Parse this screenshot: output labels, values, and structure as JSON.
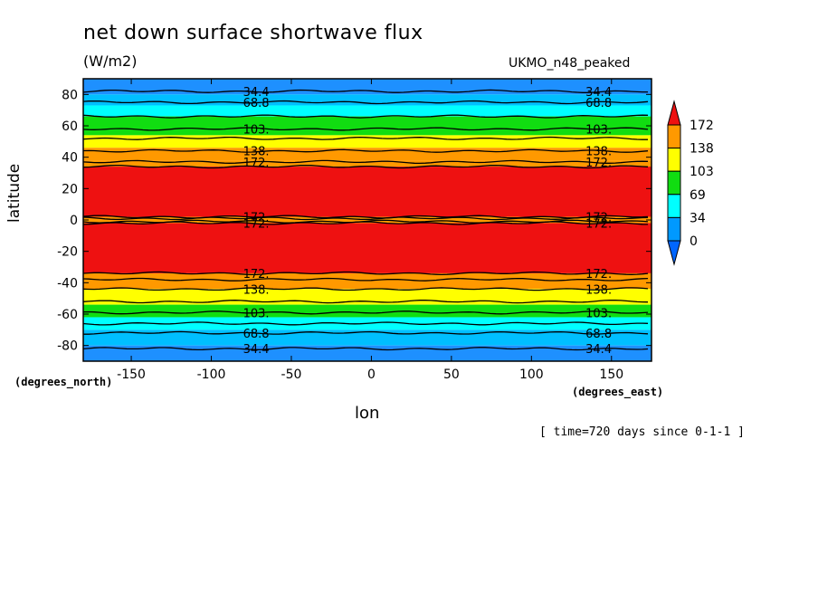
{
  "chart_data": {
    "type": "heatmap",
    "title": "net down surface shortwave flux",
    "units": "(W/m2)",
    "dataset": "UKMO_n48_peaked",
    "xlabel": "lon",
    "ylabel": "latitude",
    "x_units": "(degrees_east)",
    "y_units": "(degrees_north)",
    "annotation": "[ time=720 days since 0-1-1 ]",
    "xlim": [
      -180,
      175
    ],
    "ylim": [
      -90,
      90
    ],
    "x_ticks": [
      -150,
      -100,
      -50,
      0,
      50,
      100,
      150
    ],
    "x_tick_labels": [
      "-150",
      "-100",
      "-50",
      "0",
      "50",
      "100",
      "150"
    ],
    "y_ticks": [
      80,
      60,
      40,
      20,
      0,
      -20,
      -40,
      -60,
      -80
    ],
    "y_tick_labels": [
      "80",
      "60",
      "40",
      "20",
      "0",
      "-20",
      "-40",
      "-60",
      "-80"
    ],
    "colorbar": {
      "labels": [
        "172",
        "138",
        "103",
        "69",
        "34",
        "0"
      ],
      "colors": [
        "#ff9900",
        "#ffff00",
        "#11dd11",
        "#00ffff",
        "#0099ff"
      ],
      "over_color": "#ee1111",
      "under_color": "#0066ff"
    },
    "bands": [
      {
        "lat_from": 90,
        "lat_to": 80,
        "color": "#1e90ff"
      },
      {
        "lat_from": 80,
        "lat_to": 73,
        "color": "#00bfff"
      },
      {
        "lat_from": 73,
        "lat_to": 66,
        "color": "#00ffff"
      },
      {
        "lat_from": 66,
        "lat_to": 60,
        "color": "#11dd11"
      },
      {
        "lat_from": 60,
        "lat_to": 54,
        "color": "#11dd11"
      },
      {
        "lat_from": 54,
        "lat_to": 46,
        "color": "#ffff00"
      },
      {
        "lat_from": 46,
        "lat_to": 38,
        "color": "#ff9900"
      },
      {
        "lat_from": 38,
        "lat_to": 34,
        "color": "#ff9900"
      },
      {
        "lat_from": 34,
        "lat_to": 2,
        "color": "#ee1111"
      },
      {
        "lat_from": 2,
        "lat_to": -2,
        "color": "#ff9900"
      },
      {
        "lat_from": -2,
        "lat_to": -34,
        "color": "#ee1111"
      },
      {
        "lat_from": -34,
        "lat_to": -44,
        "color": "#ff9900"
      },
      {
        "lat_from": -44,
        "lat_to": -54,
        "color": "#ffff00"
      },
      {
        "lat_from": -54,
        "lat_to": -62,
        "color": "#11dd11"
      },
      {
        "lat_from": -62,
        "lat_to": -70,
        "color": "#00ffff"
      },
      {
        "lat_from": -70,
        "lat_to": -80,
        "color": "#00bfff"
      },
      {
        "lat_from": -80,
        "lat_to": -90,
        "color": "#1e90ff"
      }
    ],
    "contours": [
      {
        "lat": 82,
        "label": "34.4"
      },
      {
        "lat": 75,
        "label": "68.8"
      },
      {
        "lat": 66,
        "label": ""
      },
      {
        "lat": 58,
        "label": "103."
      },
      {
        "lat": 52,
        "label": ""
      },
      {
        "lat": 44,
        "label": "138."
      },
      {
        "lat": 37,
        "label": "172."
      },
      {
        "lat": 34,
        "label": ""
      },
      {
        "lat": 2,
        "label": "172."
      },
      {
        "lat": 1,
        "label": ""
      },
      {
        "lat": -1,
        "label": ""
      },
      {
        "lat": -2,
        "label": "172."
      },
      {
        "lat": -34,
        "label": "172."
      },
      {
        "lat": -38,
        "label": ""
      },
      {
        "lat": -44,
        "label": "138."
      },
      {
        "lat": -52,
        "label": ""
      },
      {
        "lat": -59,
        "label": "103."
      },
      {
        "lat": -66,
        "label": ""
      },
      {
        "lat": -72,
        "label": "68.8"
      },
      {
        "lat": -82,
        "label": "34.4"
      }
    ],
    "contour_label_lons": [
      -72,
      142
    ]
  }
}
